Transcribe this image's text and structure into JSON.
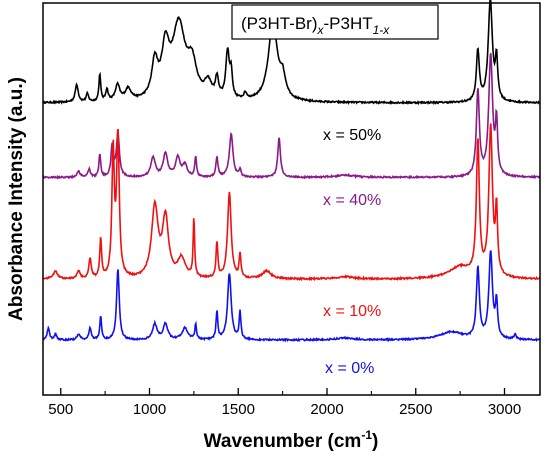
{
  "chart_data": {
    "type": "line",
    "title": "",
    "xlabel": "Wavenumber (cm",
    "xlabel_sup": "-1",
    "xlabel_close": ")",
    "ylabel": "Absorbance Intensity (a.u.)",
    "xlim": [
      400,
      3200
    ],
    "xticks": [
      500,
      1000,
      1500,
      2000,
      2500,
      3000
    ],
    "ylim": [
      0,
      1
    ],
    "legend_box": {
      "prefix": "(P3HT-Br)",
      "sub_x": "x",
      "mid": "-P3HT",
      "sub_1x": "1-x",
      "position": "top-center"
    },
    "series": [
      {
        "name": "x = 50%",
        "color": "#000000",
        "baseline": 0.745,
        "scale": 1.0,
        "peaks": [
          {
            "x": 590,
            "h": 0.045,
            "w": 10
          },
          {
            "x": 650,
            "h": 0.02,
            "w": 8
          },
          {
            "x": 720,
            "h": 0.07,
            "w": 6
          },
          {
            "x": 760,
            "h": 0.03,
            "w": 8
          },
          {
            "x": 820,
            "h": 0.04,
            "w": 15
          },
          {
            "x": 880,
            "h": 0.03,
            "w": 20
          },
          {
            "x": 1030,
            "h": 0.09,
            "w": 20
          },
          {
            "x": 1090,
            "h": 0.12,
            "w": 25
          },
          {
            "x": 1165,
            "h": 0.19,
            "w": 45
          },
          {
            "x": 1240,
            "h": 0.08,
            "w": 30
          },
          {
            "x": 1330,
            "h": 0.04,
            "w": 25
          },
          {
            "x": 1380,
            "h": 0.05,
            "w": 10
          },
          {
            "x": 1440,
            "h": 0.12,
            "w": 12
          },
          {
            "x": 1460,
            "h": 0.06,
            "w": 8
          },
          {
            "x": 1540,
            "h": 0.015,
            "w": 10
          },
          {
            "x": 1695,
            "h": 0.2,
            "w": 30
          },
          {
            "x": 1750,
            "h": 0.05,
            "w": 20
          },
          {
            "x": 2850,
            "h": 0.13,
            "w": 10
          },
          {
            "x": 2920,
            "h": 0.26,
            "w": 14
          },
          {
            "x": 2955,
            "h": 0.1,
            "w": 8
          }
        ]
      },
      {
        "name": "x = 40%",
        "color": "#8B1A89",
        "baseline": 0.555,
        "scale": 1.0,
        "peaks": [
          {
            "x": 600,
            "h": 0.015,
            "w": 10
          },
          {
            "x": 660,
            "h": 0.02,
            "w": 8
          },
          {
            "x": 720,
            "h": 0.06,
            "w": 6
          },
          {
            "x": 790,
            "h": 0.08,
            "w": 8
          },
          {
            "x": 822,
            "h": 0.11,
            "w": 10
          },
          {
            "x": 1020,
            "h": 0.05,
            "w": 15
          },
          {
            "x": 1090,
            "h": 0.06,
            "w": 15
          },
          {
            "x": 1160,
            "h": 0.05,
            "w": 15
          },
          {
            "x": 1200,
            "h": 0.03,
            "w": 15
          },
          {
            "x": 1260,
            "h": 0.05,
            "w": 6
          },
          {
            "x": 1380,
            "h": 0.05,
            "w": 7
          },
          {
            "x": 1460,
            "h": 0.11,
            "w": 12
          },
          {
            "x": 1510,
            "h": 0.02,
            "w": 6
          },
          {
            "x": 1730,
            "h": 0.1,
            "w": 9
          },
          {
            "x": 2100,
            "h": 0.006,
            "w": 60
          },
          {
            "x": 2850,
            "h": 0.22,
            "w": 10
          },
          {
            "x": 2922,
            "h": 0.31,
            "w": 13
          },
          {
            "x": 2955,
            "h": 0.13,
            "w": 7
          }
        ]
      },
      {
        "name": "x = 10%",
        "color": "#EE1111",
        "baseline": 0.295,
        "scale": 1.0,
        "peaks": [
          {
            "x": 470,
            "h": 0.02,
            "w": 15
          },
          {
            "x": 600,
            "h": 0.02,
            "w": 10
          },
          {
            "x": 665,
            "h": 0.05,
            "w": 8
          },
          {
            "x": 725,
            "h": 0.1,
            "w": 6
          },
          {
            "x": 795,
            "h": 0.32,
            "w": 8
          },
          {
            "x": 822,
            "h": 0.36,
            "w": 9
          },
          {
            "x": 1030,
            "h": 0.18,
            "w": 22
          },
          {
            "x": 1090,
            "h": 0.15,
            "w": 20
          },
          {
            "x": 1180,
            "h": 0.05,
            "w": 25
          },
          {
            "x": 1250,
            "h": 0.15,
            "w": 5
          },
          {
            "x": 1380,
            "h": 0.09,
            "w": 6
          },
          {
            "x": 1450,
            "h": 0.22,
            "w": 12
          },
          {
            "x": 1510,
            "h": 0.06,
            "w": 6
          },
          {
            "x": 1660,
            "h": 0.02,
            "w": 30
          },
          {
            "x": 2100,
            "h": 0.006,
            "w": 60
          },
          {
            "x": 2750,
            "h": 0.03,
            "w": 80
          },
          {
            "x": 2850,
            "h": 0.34,
            "w": 10
          },
          {
            "x": 2922,
            "h": 0.38,
            "w": 12
          },
          {
            "x": 2955,
            "h": 0.16,
            "w": 7
          }
        ]
      },
      {
        "name": "x = 0%",
        "color": "#1111EE",
        "baseline": 0.14,
        "scale": 1.0,
        "peaks": [
          {
            "x": 430,
            "h": 0.03,
            "w": 8
          },
          {
            "x": 470,
            "h": 0.015,
            "w": 8
          },
          {
            "x": 600,
            "h": 0.015,
            "w": 10
          },
          {
            "x": 665,
            "h": 0.03,
            "w": 8
          },
          {
            "x": 725,
            "h": 0.06,
            "w": 6
          },
          {
            "x": 822,
            "h": 0.18,
            "w": 9
          },
          {
            "x": 1030,
            "h": 0.04,
            "w": 15
          },
          {
            "x": 1090,
            "h": 0.04,
            "w": 15
          },
          {
            "x": 1200,
            "h": 0.03,
            "w": 20
          },
          {
            "x": 1260,
            "h": 0.04,
            "w": 5
          },
          {
            "x": 1380,
            "h": 0.07,
            "w": 6
          },
          {
            "x": 1450,
            "h": 0.17,
            "w": 12
          },
          {
            "x": 1510,
            "h": 0.07,
            "w": 6
          },
          {
            "x": 2100,
            "h": 0.005,
            "w": 60
          },
          {
            "x": 2700,
            "h": 0.02,
            "w": 80
          },
          {
            "x": 2850,
            "h": 0.18,
            "w": 10
          },
          {
            "x": 2922,
            "h": 0.22,
            "w": 12
          },
          {
            "x": 2955,
            "h": 0.09,
            "w": 7
          },
          {
            "x": 3060,
            "h": 0.012,
            "w": 8
          }
        ]
      }
    ],
    "grid": false,
    "legend": "inline labels beside each curve"
  }
}
